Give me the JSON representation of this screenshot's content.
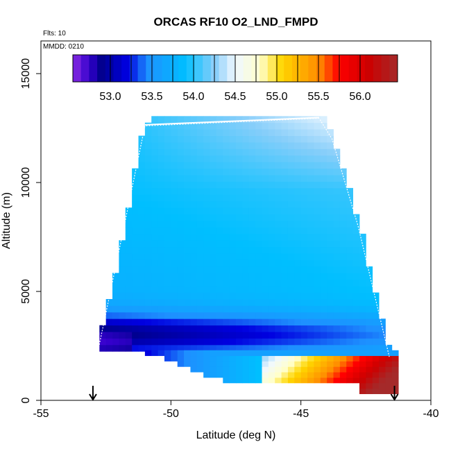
{
  "chart_data": {
    "type": "heatmap",
    "title": "ORCAS RF10 O2_LND_FMPD",
    "subtitle_flights": "Flts: 10",
    "subtitle_date": "MMDD: 0210",
    "xlabel": "Latitude (deg N)",
    "ylabel": "Altitude (m)",
    "xlim": [
      -55,
      -40
    ],
    "ylim": [
      0,
      16500
    ],
    "x_ticks": [
      -55,
      -50,
      -45,
      -40
    ],
    "x_tick_labels": [
      "-55",
      "-50",
      "-45",
      "-40"
    ],
    "y_ticks": [
      0,
      5000,
      10000,
      15000
    ],
    "y_tick_labels": [
      "0",
      "5000",
      "10000",
      "15000"
    ],
    "colorbar": {
      "range": [
        52.55,
        56.45
      ],
      "ticks": [
        53.0,
        53.5,
        54.0,
        54.5,
        55.0,
        55.5,
        56.0
      ],
      "tick_labels": [
        "53.0",
        "53.5",
        "54.0",
        "54.5",
        "55.0",
        "55.5",
        "56.0"
      ],
      "stops": [
        {
          "v": 52.55,
          "c": "#8a2be2"
        },
        {
          "v": 52.75,
          "c": "#3300cc"
        },
        {
          "v": 52.9,
          "c": "#00008b"
        },
        {
          "v": 53.2,
          "c": "#0000e0"
        },
        {
          "v": 53.45,
          "c": "#1e90ff"
        },
        {
          "v": 53.9,
          "c": "#00bfff"
        },
        {
          "v": 54.25,
          "c": "#87cefa"
        },
        {
          "v": 54.5,
          "c": "#f0f8ff"
        },
        {
          "v": 54.8,
          "c": "#ffffcc"
        },
        {
          "v": 55.05,
          "c": "#ffd700"
        },
        {
          "v": 55.5,
          "c": "#ff8c00"
        },
        {
          "v": 55.75,
          "c": "#ff0000"
        },
        {
          "v": 56.1,
          "c": "#cc0000"
        },
        {
          "v": 56.45,
          "c": "#a52a2a"
        }
      ]
    },
    "field_model": {
      "envelope": {
        "left_edge": [
          [
            -52.8,
            2300
          ],
          [
            -52.0,
            6000
          ],
          [
            -51.0,
            12600
          ],
          [
            -50.3,
            12900
          ]
        ],
        "right_edge": [
          [
            -44.3,
            13000
          ],
          [
            -43.8,
            12000
          ],
          [
            -42.8,
            8000
          ],
          [
            -41.6,
            2000
          ]
        ],
        "top": [
          -51.0,
          12600,
          -44.3,
          13000
        ]
      },
      "notes": "Values ~53.6-54.1 in upper region, ~52.9 blue band at 2500-3500 m, 54.3-56.2 near surface toward -41 deg"
    },
    "flight_track_color": "#ffffff",
    "markers": [
      {
        "x": -53.0,
        "label": "start-arrow"
      },
      {
        "x": -41.4,
        "label": "end-arrow"
      }
    ]
  }
}
